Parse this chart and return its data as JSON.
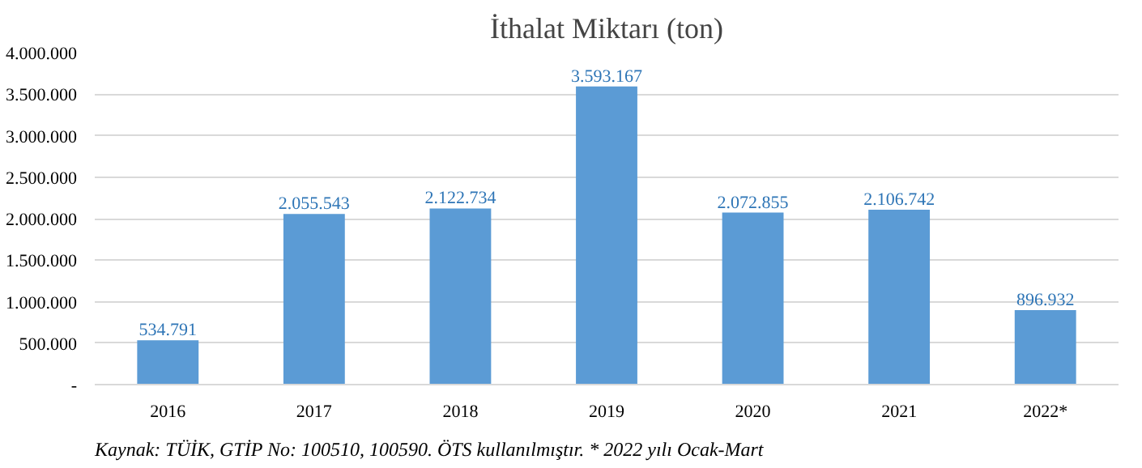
{
  "chart_data": {
    "type": "bar",
    "title": "İthalat Miktarı (ton)",
    "categories": [
      "2016",
      "2017",
      "2018",
      "2019",
      "2020",
      "2021",
      "2022*"
    ],
    "values": [
      534791,
      2055543,
      2122734,
      3593167,
      2072855,
      2106742,
      896932
    ],
    "value_labels": [
      "534.791",
      "2.055.543",
      "2.122.734",
      "3.593.167",
      "2.072.855",
      "2.106.742",
      "896.932"
    ],
    "color": "#5b9bd5",
    "grid": "y",
    "legend": false,
    "ylim": [
      0,
      4000000
    ],
    "yticks": [
      {
        "value": 0,
        "label": "-"
      },
      {
        "value": 500000,
        "label": "500.000"
      },
      {
        "value": 1000000,
        "label": "1.000.000"
      },
      {
        "value": 1500000,
        "label": "1.500.000"
      },
      {
        "value": 2000000,
        "label": "2.000.000"
      },
      {
        "value": 2500000,
        "label": "2.500.000"
      },
      {
        "value": 3000000,
        "label": "3.000.000"
      },
      {
        "value": 3500000,
        "label": "3.500.000"
      },
      {
        "value": 4000000,
        "label": "4.000.000"
      }
    ],
    "annotations": [
      "Kaynak: TÜİK, GTİP No: 100510, 100590. ÖTS kullanılmıştır. * 2022 yılı Ocak-Mart"
    ]
  }
}
